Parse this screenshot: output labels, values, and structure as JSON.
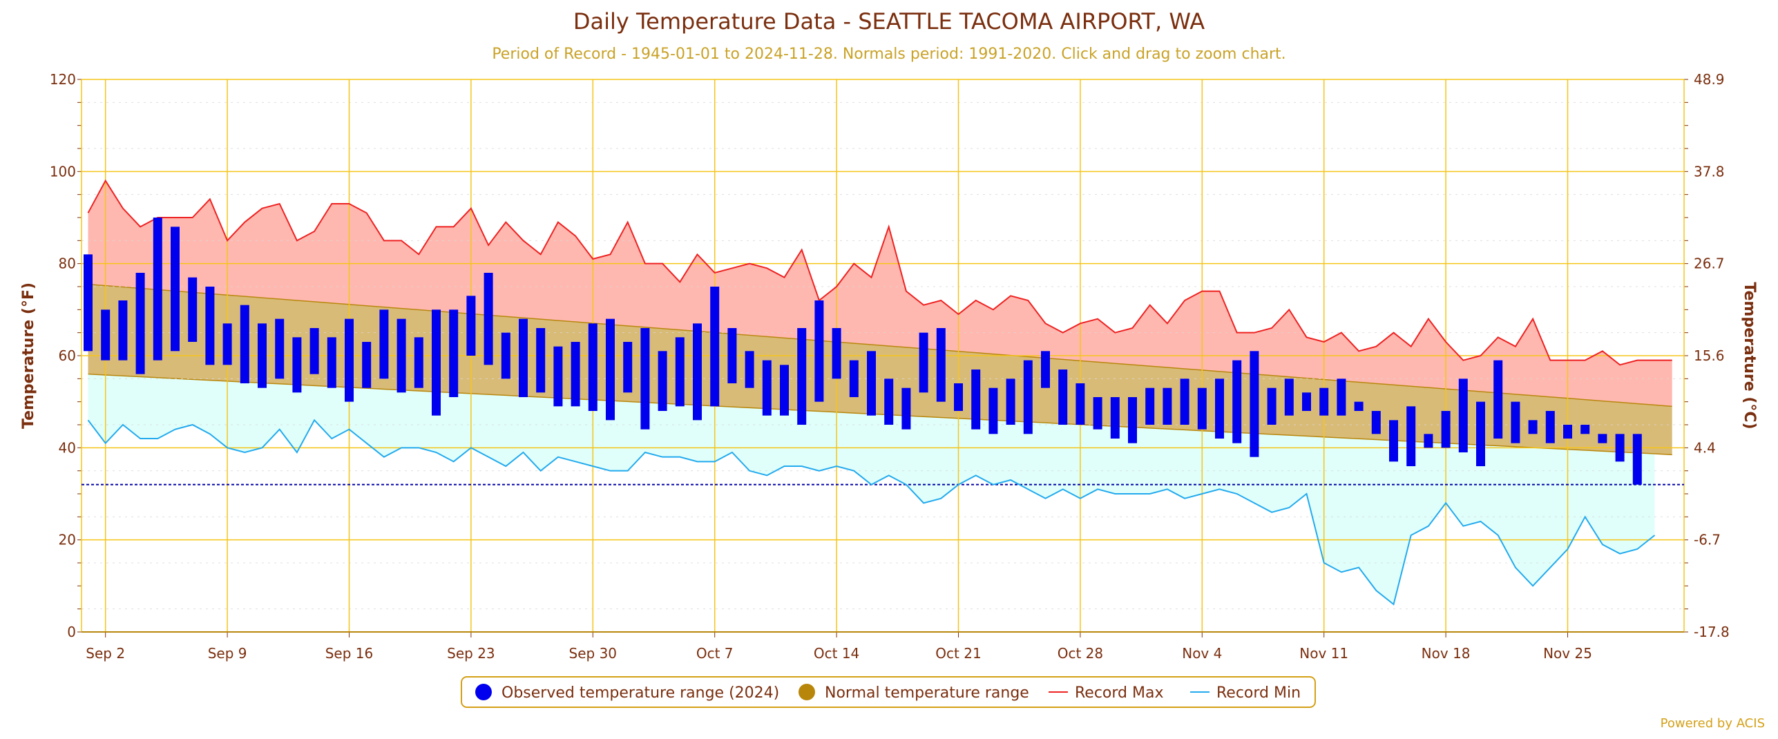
{
  "chart_data": {
    "type": "bar",
    "title": "Daily Temperature Data - SEATTLE TACOMA AIRPORT, WA",
    "subtitle": "Period of Record - 1945-01-01 to 2024-11-28. Normals period: 1991-2020. Click and drag to zoom chart.",
    "ylabel": "Temperature (°F)",
    "y2label": "Temperature (°C)",
    "ylim": [
      0,
      120
    ],
    "y_ticks": [
      0,
      20,
      40,
      60,
      80,
      100,
      120
    ],
    "y2_tick_labels": [
      "-17.8",
      "-6.7",
      "4.4",
      "15.6",
      "26.7",
      "37.8",
      "48.9"
    ],
    "x_tick_labels": [
      "Sep 2",
      "Sep 9",
      "Sep 16",
      "Sep 23",
      "Sep 30",
      "Oct 7",
      "Oct 14",
      "Oct 21",
      "Oct 28",
      "Nov 4",
      "Nov 11",
      "Nov 18",
      "Nov 25"
    ],
    "x_tick_day_offsets": [
      1,
      8,
      15,
      22,
      29,
      36,
      43,
      50,
      57,
      64,
      71,
      78,
      85
    ],
    "freezing_line": 32,
    "grid": true,
    "legend_position": "bottom",
    "credits": "Powered by ACIS",
    "colors": {
      "observed": "#0000ee",
      "normal_fill": "#d9bb78",
      "normal_line": "#b8860b",
      "record_max_line": "#ee2222",
      "record_max_fill": "#ffb8b0",
      "record_min_line": "#22aaee",
      "record_min_fill": "#e0fffa",
      "grid": "#f5c518",
      "freezing": "#0000aa"
    },
    "legend": [
      {
        "label": "Observed temperature range (2024)",
        "symbol": "circle",
        "color": "#0000ee"
      },
      {
        "label": "Normal temperature range",
        "symbol": "circle",
        "color": "#b8860b"
      },
      {
        "label": "Record Max",
        "symbol": "line",
        "color": "#ee2222"
      },
      {
        "label": "Record Min",
        "symbol": "line",
        "color": "#22aaee"
      }
    ],
    "series": [
      {
        "name": "Observed temperature range (2024)",
        "type": "columnrange",
        "low": [
          61,
          59,
          59,
          56,
          59,
          61,
          63,
          58,
          58,
          54,
          53,
          55,
          52,
          56,
          53,
          50,
          53,
          55,
          52,
          53,
          47,
          51,
          60,
          58,
          55,
          51,
          52,
          49,
          49,
          48,
          46,
          52,
          44,
          48,
          49,
          46,
          49,
          54,
          53,
          47,
          47,
          45,
          50,
          55,
          51,
          47,
          45,
          44,
          52,
          50,
          48,
          44,
          43,
          45,
          43,
          53,
          45,
          45,
          44,
          42,
          41,
          45,
          45,
          45,
          44,
          42,
          41,
          38,
          45,
          47,
          48,
          47,
          47,
          48,
          43,
          37,
          36,
          40,
          40,
          39,
          36,
          42,
          41,
          43,
          41,
          42,
          43,
          41,
          37,
          32
        ],
        "high": [
          82,
          70,
          72,
          78,
          90,
          88,
          77,
          75,
          67,
          71,
          67,
          68,
          64,
          66,
          64,
          68,
          63,
          70,
          68,
          64,
          70,
          70,
          73,
          78,
          65,
          68,
          66,
          62,
          63,
          67,
          68,
          63,
          66,
          61,
          64,
          67,
          75,
          66,
          61,
          59,
          58,
          66,
          72,
          66,
          59,
          61,
          55,
          53,
          65,
          66,
          54,
          57,
          53,
          55,
          59,
          61,
          57,
          54,
          51,
          51,
          51,
          53,
          53,
          55,
          53,
          55,
          59,
          61,
          53,
          55,
          52,
          53,
          55,
          50,
          48,
          46,
          49,
          43,
          48,
          55,
          50,
          59,
          50,
          46,
          48,
          45,
          45,
          43,
          43,
          43
        ]
      },
      {
        "name": "Normal temperature range",
        "type": "arearange",
        "low_start": 56,
        "low_end": 38.5,
        "high_start": 75.5,
        "high_end": 49
      },
      {
        "name": "Record Max",
        "type": "line",
        "values": [
          91,
          98,
          92,
          88,
          90,
          90,
          90,
          94,
          85,
          89,
          92,
          93,
          85,
          87,
          93,
          93,
          91,
          85,
          85,
          82,
          88,
          88,
          92,
          84,
          89,
          85,
          82,
          89,
          86,
          81,
          82,
          89,
          80,
          80,
          76,
          82,
          78,
          79,
          80,
          79,
          77,
          83,
          72,
          75,
          80,
          77,
          88,
          74,
          71,
          72,
          69,
          72,
          70,
          73,
          72,
          67,
          65,
          67,
          68,
          65,
          66,
          71,
          67,
          72,
          74,
          74,
          65,
          65,
          66,
          70,
          64,
          63,
          65,
          61,
          62,
          65,
          62,
          68,
          63,
          59,
          60,
          64,
          62,
          68,
          59,
          59,
          59,
          61,
          58,
          59,
          59,
          59
        ],
        "days": 92
      },
      {
        "name": "Record Min",
        "type": "line",
        "values": [
          46,
          41,
          45,
          42,
          42,
          44,
          45,
          43,
          40,
          39,
          40,
          44,
          39,
          46,
          42,
          44,
          41,
          38,
          40,
          40,
          39,
          37,
          40,
          38,
          36,
          39,
          35,
          38,
          37,
          36,
          35,
          35,
          39,
          38,
          38,
          37,
          37,
          39,
          35,
          34,
          36,
          36,
          35,
          36,
          35,
          32,
          34,
          32,
          28,
          29,
          32,
          34,
          32,
          33,
          31,
          29,
          31,
          29,
          31,
          30,
          30,
          30,
          31,
          29,
          30,
          31,
          30,
          28,
          26,
          27,
          30,
          15,
          13,
          14,
          9,
          6,
          21,
          23,
          28,
          23,
          24,
          21,
          14,
          10,
          14,
          18,
          25,
          19,
          17,
          18,
          21
        ],
        "days": 91
      }
    ]
  }
}
